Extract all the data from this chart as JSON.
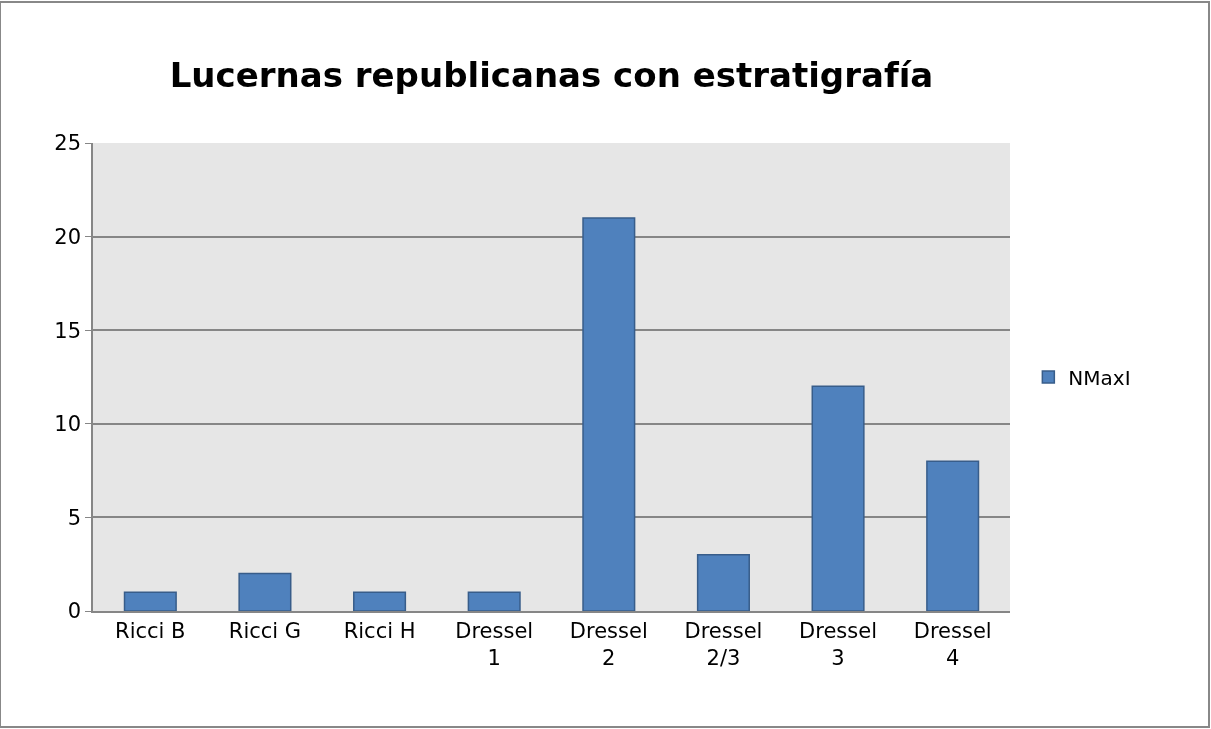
{
  "chart_data": {
    "type": "bar",
    "title": "Lucernas republicanas con estratigrafía",
    "categories": [
      "Ricci B",
      "Ricci G",
      "Ricci H",
      "Dressel 1",
      "Dressel 2",
      "Dressel 2/3",
      "Dressel 3",
      "Dressel 4"
    ],
    "series": [
      {
        "name": "NMaxI",
        "color": "#4f81bd",
        "values": [
          1,
          2,
          1,
          1,
          21,
          3,
          12,
          8
        ]
      }
    ],
    "ylim": [
      0,
      25
    ],
    "yticks": [
      0,
      5,
      10,
      15,
      20,
      25
    ],
    "grid": "y",
    "legend": "right"
  }
}
